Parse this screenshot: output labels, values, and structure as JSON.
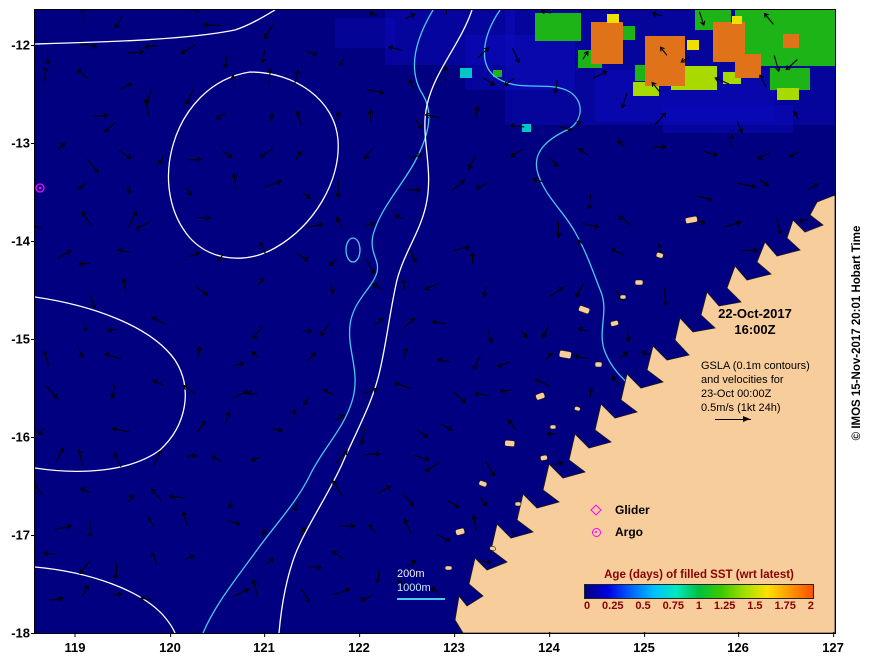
{
  "figure": {
    "copyright": "© IMOS 15-Nov-2017 20:01 Hobart Time"
  },
  "axes": {
    "x_ticks": [
      "119",
      "120",
      "121",
      "122",
      "123",
      "124",
      "125",
      "126",
      "127"
    ],
    "y_ticks": [
      "-12",
      "-13",
      "-14",
      "-15",
      "-16",
      "-17",
      "-18"
    ]
  },
  "annotations": {
    "timestamp_date": "22-Oct-2017",
    "timestamp_time": "16:00Z",
    "gsla_lines": [
      "GSLA (0.1m contours)",
      "and velocities for",
      "23-Oct 00:00Z",
      "0.5m/s (1kt 24h)"
    ]
  },
  "markers_legend": {
    "glider": "Glider",
    "argo": "Argo"
  },
  "depth_legend": {
    "d200": "200m",
    "d1000": "1000m"
  },
  "colorbar": {
    "title": "Age (days) of filled SST (wrt latest)",
    "ticks": [
      "0",
      "0.25",
      "0.5",
      "0.75",
      "1",
      "1.25",
      "1.5",
      "1.75",
      "2"
    ],
    "colors": [
      "#000080",
      "#0000e0",
      "#0060ff",
      "#00c0ff",
      "#00e8c0",
      "#00c040",
      "#40c800",
      "#a0e000",
      "#ffe000",
      "#ff9800",
      "#ff5000"
    ]
  },
  "colors": {
    "ocean": "#000080",
    "land": "#f8cd9c",
    "contour": "#ffffff",
    "bathy": "#4ac9ee",
    "magenta": "#ff00ff",
    "maroon": "#8b0000"
  }
}
